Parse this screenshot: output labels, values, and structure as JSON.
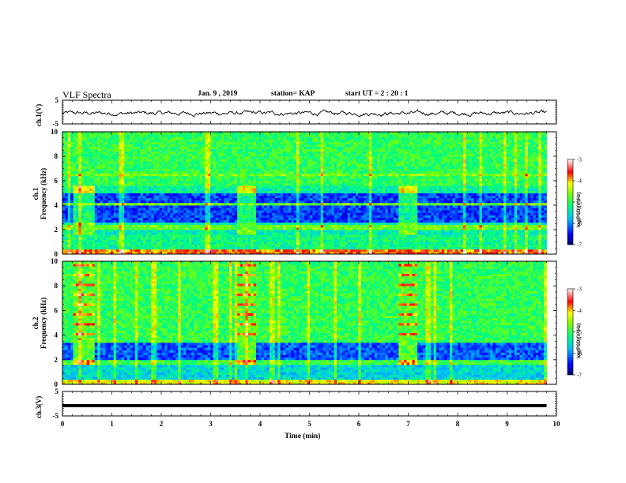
{
  "header": {
    "title": "VLF Spectra",
    "date": "Jan. 9 , 2019",
    "station": "station= KAP",
    "start": "start  UT =  2 : 20 : 1"
  },
  "chart_data": [
    {
      "type": "line",
      "ylabel": "ch.1(V)",
      "ylim": [
        -5,
        5
      ],
      "yticks": [
        "5",
        "-5"
      ],
      "xlim": [
        0,
        10
      ],
      "x_end": 9.8,
      "signal": "noisy waveform fluctuating roughly between -3 and 2 V"
    },
    {
      "type": "heatmap",
      "ylabel": "ch.1\nFrequency (kHz)",
      "xlim": [
        0,
        10
      ],
      "ylim": [
        0,
        10
      ],
      "yticks": [
        "0",
        "2",
        "4",
        "6",
        "8",
        "10"
      ],
      "colorbar": {
        "label": "log(PSD)(V²/Hz)",
        "range": [
          -7,
          -3
        ],
        "ticks": [
          "-3",
          "-4",
          "-5",
          "-6",
          "-7"
        ]
      },
      "bursts_min": [
        [
          0.2,
          0.6
        ],
        [
          3.5,
          3.9
        ],
        [
          6.8,
          7.15
        ]
      ]
    },
    {
      "type": "heatmap",
      "ylabel": "ch.2\nFrequency (kHz)",
      "xlim": [
        0,
        10
      ],
      "ylim": [
        0,
        10
      ],
      "yticks": [
        "0",
        "2",
        "4",
        "6",
        "8",
        "10"
      ],
      "colorbar": {
        "label": "log(PSD)(V²/Hz)",
        "range": [
          -7,
          -3
        ],
        "ticks": [
          "-3",
          "-4",
          "-5",
          "-6",
          "-7"
        ]
      },
      "bursts_min": [
        [
          0.2,
          0.6
        ],
        [
          3.5,
          3.9
        ],
        [
          6.8,
          7.15
        ]
      ]
    },
    {
      "type": "line",
      "ylabel": "ch.3(V)",
      "ylim": [
        -5,
        5
      ],
      "yticks": [
        "5",
        "-5"
      ],
      "xlim": [
        0,
        10
      ],
      "constant_value": -0.8,
      "x_end": 9.8
    }
  ],
  "xaxis": {
    "label": "Time (min)",
    "ticks": [
      "0",
      "1",
      "2",
      "3",
      "4",
      "5",
      "6",
      "7",
      "8",
      "9",
      "10"
    ]
  }
}
